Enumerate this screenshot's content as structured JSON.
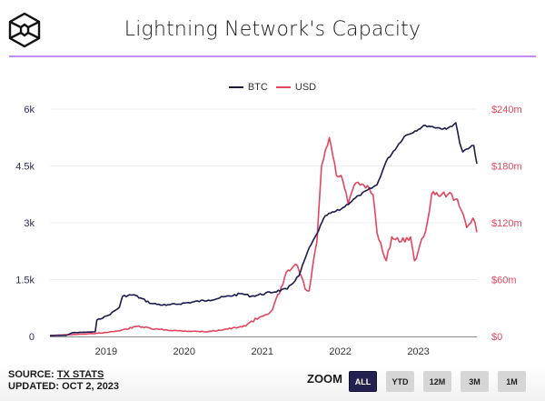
{
  "header": {
    "logo_icon": "cube-logo-icon",
    "title": "Lightning Network's Capacity"
  },
  "legend": [
    {
      "label": "BTC",
      "color": "#1b1a4d"
    },
    {
      "label": "USD",
      "color": "#e0465f"
    }
  ],
  "footer": {
    "source_prefix": "SOURCE: ",
    "source_link": "TX STATS",
    "updated": "UPDATED: OCT 2, 2023"
  },
  "zoom": {
    "label": "ZOOM",
    "buttons": [
      {
        "label": "ALL",
        "active": true
      },
      {
        "label": "YTD",
        "active": false
      },
      {
        "label": "12M",
        "active": false
      },
      {
        "label": "3M",
        "active": false
      },
      {
        "label": "1M",
        "active": false
      }
    ]
  },
  "chart_data": {
    "type": "line",
    "title": "Lightning Network's Capacity",
    "xlabel": "",
    "x_ticks": [
      "2019",
      "2020",
      "2021",
      "2022",
      "2023"
    ],
    "x_tick_values": [
      2019,
      2020,
      2021,
      2022,
      2023
    ],
    "xlim": [
      2018.28,
      2023.75
    ],
    "left_axis": {
      "label": "BTC",
      "ticks": [
        "0",
        "1.5k",
        "3k",
        "4.5k",
        "6k"
      ],
      "tick_values": [
        0,
        1500,
        3000,
        4500,
        6000
      ],
      "ylim": [
        0,
        6000
      ],
      "color": "#2a2a5a"
    },
    "right_axis": {
      "label": "USD",
      "ticks": [
        "$0",
        "$60m",
        "$120m",
        "$180m",
        "$240m"
      ],
      "tick_values": [
        0,
        60,
        120,
        180,
        240
      ],
      "ylim": [
        0,
        240
      ],
      "color": "#e0465f"
    },
    "grid": true,
    "legend_position": "top-center",
    "series": [
      {
        "name": "BTC",
        "axis": "left",
        "color": "#1b1a4d",
        "x": [
          2018.28,
          2018.49,
          2018.57,
          2018.86,
          2018.88,
          2019.03,
          2019.17,
          2019.21,
          2019.35,
          2019.58,
          2019.77,
          2020.31,
          2020.74,
          2020.86,
          2021.32,
          2021.47,
          2021.58,
          2021.7,
          2021.81,
          2022.01,
          2022.24,
          2022.47,
          2022.59,
          2022.82,
          2023.09,
          2023.36,
          2023.48,
          2023.53,
          2023.57,
          2023.71,
          2023.75
        ],
        "values": [
          20,
          30,
          100,
          120,
          430,
          560,
          770,
          1060,
          1100,
          870,
          820,
          960,
          1130,
          1060,
          1250,
          1600,
          2230,
          2710,
          3190,
          3360,
          3720,
          4000,
          4630,
          5280,
          5570,
          5470,
          5640,
          5110,
          4870,
          5040,
          4560
        ]
      },
      {
        "name": "USD",
        "axis": "right",
        "color": "#e0465f",
        "unit": "$m",
        "x": [
          2018.28,
          2018.86,
          2019.17,
          2019.42,
          2019.58,
          2019.92,
          2020.3,
          2020.74,
          2020.96,
          2021.13,
          2021.22,
          2021.33,
          2021.45,
          2021.55,
          2021.6,
          2021.7,
          2021.76,
          2021.86,
          2021.95,
          2022.01,
          2022.1,
          2022.18,
          2022.3,
          2022.42,
          2022.47,
          2022.59,
          2022.66,
          2022.78,
          2022.9,
          2022.95,
          2023.09,
          2023.17,
          2023.3,
          2023.38,
          2023.5,
          2023.62,
          2023.7,
          2023.75
        ],
        "values": [
          1,
          3,
          6,
          11,
          8,
          6,
          5,
          10,
          20,
          28,
          45,
          70,
          75,
          50,
          48,
          100,
          180,
          210,
          170,
          170,
          140,
          160,
          160,
          150,
          110,
          80,
          105,
          100,
          105,
          80,
          110,
          150,
          150,
          150,
          145,
          115,
          125,
          110
        ]
      }
    ]
  }
}
